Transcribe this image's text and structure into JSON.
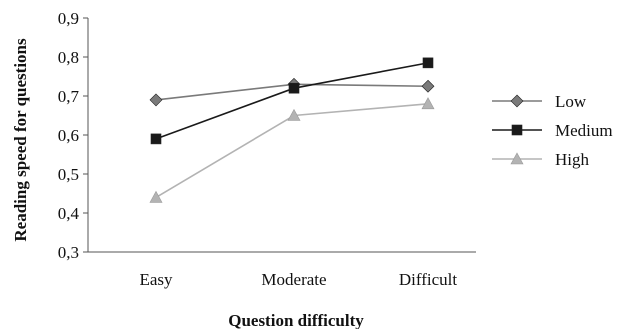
{
  "chart_data": {
    "type": "line",
    "title": "",
    "xlabel": "Question difficulty",
    "ylabel": "Reading speed for questions",
    "categories": [
      "Easy",
      "Moderate",
      "Difficult"
    ],
    "ylim": [
      0.3,
      0.9
    ],
    "yticks": [
      "0,3",
      "0,4",
      "0,5",
      "0,6",
      "0,7",
      "0,8",
      "0,9"
    ],
    "ytick_values": [
      0.3,
      0.4,
      0.5,
      0.6,
      0.7,
      0.8,
      0.9
    ],
    "grid": false,
    "legend_position": "right",
    "series": [
      {
        "name": "Low",
        "values": [
          0.69,
          0.73,
          0.725
        ],
        "color": "#7a7a7a",
        "marker": "diamond"
      },
      {
        "name": "Medium",
        "values": [
          0.59,
          0.72,
          0.785
        ],
        "color": "#1a1a1a",
        "marker": "square"
      },
      {
        "name": "High",
        "values": [
          0.44,
          0.65,
          0.68
        ],
        "color": "#b3b3b3",
        "marker": "triangle"
      }
    ]
  }
}
